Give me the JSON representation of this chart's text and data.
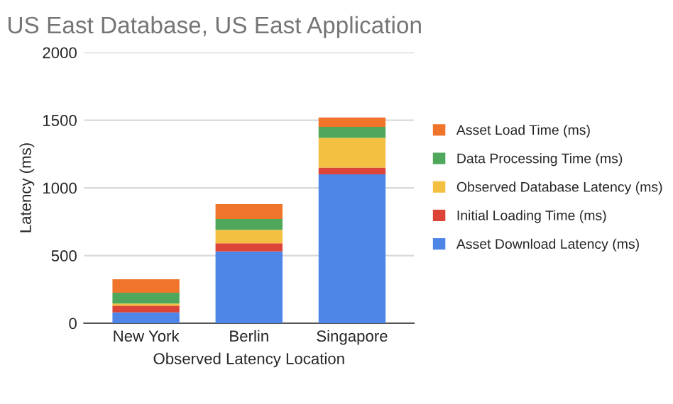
{
  "chart_data": {
    "type": "bar",
    "title": "US East Database, US East Application",
    "xlabel": "Observed Latency Location",
    "ylabel": "Latency (ms)",
    "categories": [
      "New York",
      "Berlin",
      "Singapore"
    ],
    "stacked": true,
    "series": [
      {
        "name": "Asset Download Latency (ms)",
        "color": "#4e86e8",
        "values": [
          80,
          530,
          1100
        ]
      },
      {
        "name": "Initial Loading Time (ms)",
        "color": "#db4437",
        "values": [
          50,
          60,
          50
        ]
      },
      {
        "name": "Observed Database Latency (ms)",
        "color": "#f4c042",
        "values": [
          15,
          100,
          220
        ]
      },
      {
        "name": "Data Processing Time (ms)",
        "color": "#4ea75a",
        "values": [
          80,
          80,
          80
        ]
      },
      {
        "name": "Asset Load Time (ms)",
        "color": "#f0752b",
        "values": [
          100,
          110,
          70
        ]
      }
    ],
    "ylim": [
      0,
      2000
    ],
    "yticks": [
      0,
      500,
      1000,
      1500,
      2000
    ],
    "grid": "y",
    "legend": "right"
  }
}
